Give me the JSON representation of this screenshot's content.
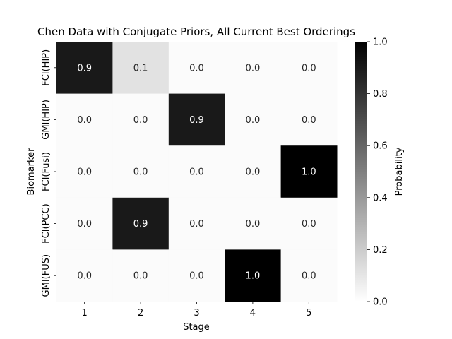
{
  "chart_data": {
    "type": "heatmap",
    "title": "Chen Data with Conjugate Priors, All Current Best Orderings",
    "xlabel": "Stage",
    "ylabel": "Biomarker",
    "x_categories": [
      "1",
      "2",
      "3",
      "4",
      "5"
    ],
    "y_categories": [
      "FCI(HIP)",
      "GMI(HIP)",
      "FCI(Fusi)",
      "FCI(PCC)",
      "GMI(FUS)"
    ],
    "values": [
      [
        0.9,
        0.1,
        0.0,
        0.0,
        0.0
      ],
      [
        0.0,
        0.0,
        0.9,
        0.0,
        0.0
      ],
      [
        0.0,
        0.0,
        0.0,
        0.0,
        1.0
      ],
      [
        0.0,
        0.9,
        0.0,
        0.0,
        0.0
      ],
      [
        0.0,
        0.0,
        0.0,
        1.0,
        0.0
      ]
    ],
    "colorbar": {
      "label": "Probability",
      "range": [
        0.0,
        1.0
      ],
      "ticks": [
        "0.0",
        "0.2",
        "0.4",
        "0.6",
        "0.8",
        "1.0"
      ],
      "colormap": "white-to-black"
    }
  }
}
